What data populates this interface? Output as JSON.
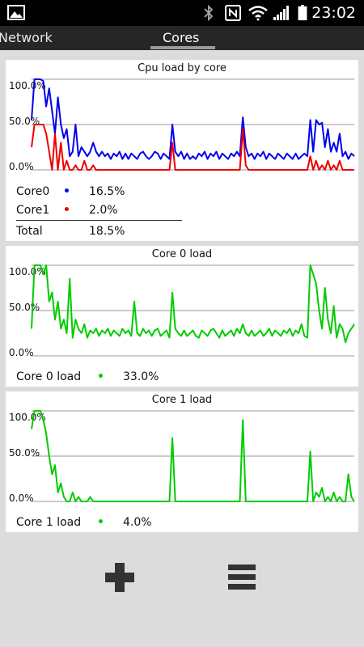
{
  "status_bar": {
    "time": "23:02"
  },
  "tabs": [
    {
      "label": "Network"
    },
    {
      "label": "Cores"
    }
  ],
  "overall": {
    "title": "Cpu load by core",
    "legend": [
      {
        "name": "Core0",
        "color": "#0000ee",
        "value": "16.5%"
      },
      {
        "name": "Core1",
        "color": "#ee0000",
        "value": "2.0%"
      }
    ],
    "total": {
      "name": "Total",
      "value": "18.5%"
    }
  },
  "core0_card": {
    "title": "Core 0 load",
    "legend": {
      "name": "Core 0 load",
      "color": "#00cc00",
      "value": "33.0%"
    }
  },
  "core1_card": {
    "title": "Core 1 load",
    "legend": {
      "name": "Core 1 load",
      "color": "#00cc00",
      "value": "4.0%"
    }
  },
  "actions": {
    "add_icon": "plus-icon",
    "menu_icon": "menu-icon"
  },
  "chart_data": [
    {
      "type": "line",
      "title": "Cpu load by core",
      "ylim": [
        0,
        100
      ],
      "yticks": [
        "100.0%",
        "50.0%",
        "0.0%"
      ],
      "grid": true,
      "legend_position": "bottom-left",
      "series": [
        {
          "name": "Core0",
          "color": "#0000ee",
          "values": [
            55,
            100,
            100,
            100,
            98,
            70,
            90,
            65,
            40,
            80,
            50,
            35,
            45,
            15,
            20,
            50,
            15,
            25,
            20,
            15,
            20,
            30,
            20,
            15,
            20,
            15,
            18,
            12,
            18,
            15,
            20,
            12,
            18,
            12,
            18,
            15,
            12,
            18,
            20,
            15,
            12,
            15,
            20,
            18,
            12,
            18,
            15,
            12,
            50,
            20,
            15,
            20,
            12,
            18,
            12,
            15,
            12,
            18,
            15,
            20,
            12,
            18,
            15,
            20,
            12,
            18,
            15,
            12,
            18,
            15,
            20,
            15,
            58,
            25,
            15,
            18,
            12,
            18,
            15,
            20,
            12,
            18,
            15,
            12,
            18,
            15,
            12,
            18,
            15,
            12,
            18,
            12,
            15,
            18,
            15,
            55,
            20,
            55,
            50,
            52,
            25,
            45,
            20,
            30,
            20,
            40,
            15,
            20,
            12,
            18,
            15
          ]
        },
        {
          "name": "Core1",
          "color": "#ee0000",
          "values": [
            25,
            50,
            50,
            50,
            50,
            40,
            20,
            0,
            40,
            0,
            30,
            0,
            10,
            0,
            0,
            5,
            0,
            0,
            10,
            0,
            0,
            5,
            0,
            0,
            0,
            0,
            0,
            0,
            0,
            0,
            0,
            0,
            0,
            0,
            0,
            0,
            0,
            0,
            0,
            0,
            0,
            0,
            0,
            0,
            0,
            0,
            0,
            0,
            30,
            0,
            0,
            0,
            0,
            0,
            0,
            0,
            0,
            0,
            0,
            0,
            0,
            0,
            0,
            0,
            0,
            0,
            0,
            0,
            0,
            0,
            0,
            0,
            45,
            5,
            0,
            0,
            0,
            0,
            0,
            0,
            0,
            0,
            0,
            0,
            0,
            0,
            0,
            0,
            0,
            0,
            0,
            0,
            0,
            0,
            0,
            15,
            0,
            10,
            0,
            5,
            0,
            10,
            0,
            5,
            0,
            10,
            0,
            0,
            0,
            0,
            0
          ]
        }
      ]
    },
    {
      "type": "line",
      "title": "Core 0 load",
      "ylim": [
        0,
        100
      ],
      "yticks": [
        "100.0%",
        "50.0%",
        "0.0%"
      ],
      "grid": true,
      "series": [
        {
          "name": "Core 0 load",
          "color": "#00cc00",
          "values": [
            30,
            100,
            100,
            100,
            90,
            100,
            60,
            70,
            40,
            60,
            30,
            40,
            25,
            85,
            20,
            40,
            30,
            25,
            35,
            20,
            28,
            25,
            30,
            22,
            28,
            25,
            30,
            22,
            28,
            25,
            22,
            30,
            25,
            28,
            22,
            60,
            25,
            22,
            30,
            25,
            28,
            22,
            28,
            30,
            22,
            25,
            28,
            20,
            70,
            30,
            25,
            22,
            28,
            22,
            25,
            28,
            22,
            20,
            28,
            25,
            22,
            28,
            30,
            25,
            20,
            28,
            22,
            25,
            28,
            22,
            30,
            25,
            35,
            25,
            22,
            28,
            22,
            25,
            28,
            22,
            25,
            30,
            22,
            28,
            25,
            22,
            28,
            25,
            30,
            22,
            28,
            25,
            35,
            22,
            20,
            100,
            90,
            80,
            50,
            30,
            75,
            40,
            25,
            55,
            20,
            35,
            30,
            15,
            25,
            30,
            35
          ]
        }
      ]
    },
    {
      "type": "line",
      "title": "Core 1 load",
      "ylim": [
        0,
        100
      ],
      "yticks": [
        "100.0%",
        "50.0%",
        "0.0%"
      ],
      "grid": true,
      "series": [
        {
          "name": "Core 1 load",
          "color": "#00cc00",
          "values": [
            80,
            100,
            100,
            100,
            90,
            75,
            50,
            30,
            40,
            10,
            20,
            5,
            0,
            0,
            10,
            0,
            5,
            0,
            0,
            0,
            5,
            0,
            0,
            0,
            0,
            0,
            0,
            0,
            0,
            0,
            0,
            0,
            0,
            0,
            0,
            0,
            0,
            0,
            0,
            0,
            0,
            0,
            0,
            0,
            0,
            0,
            0,
            0,
            70,
            0,
            0,
            0,
            0,
            0,
            0,
            0,
            0,
            0,
            0,
            0,
            0,
            0,
            0,
            0,
            0,
            0,
            0,
            0,
            0,
            0,
            0,
            0,
            90,
            0,
            0,
            0,
            0,
            0,
            0,
            0,
            0,
            0,
            0,
            0,
            0,
            0,
            0,
            0,
            0,
            0,
            0,
            0,
            0,
            0,
            0,
            55,
            0,
            10,
            5,
            15,
            0,
            5,
            0,
            10,
            0,
            5,
            0,
            0,
            30,
            5,
            0
          ]
        }
      ]
    }
  ]
}
